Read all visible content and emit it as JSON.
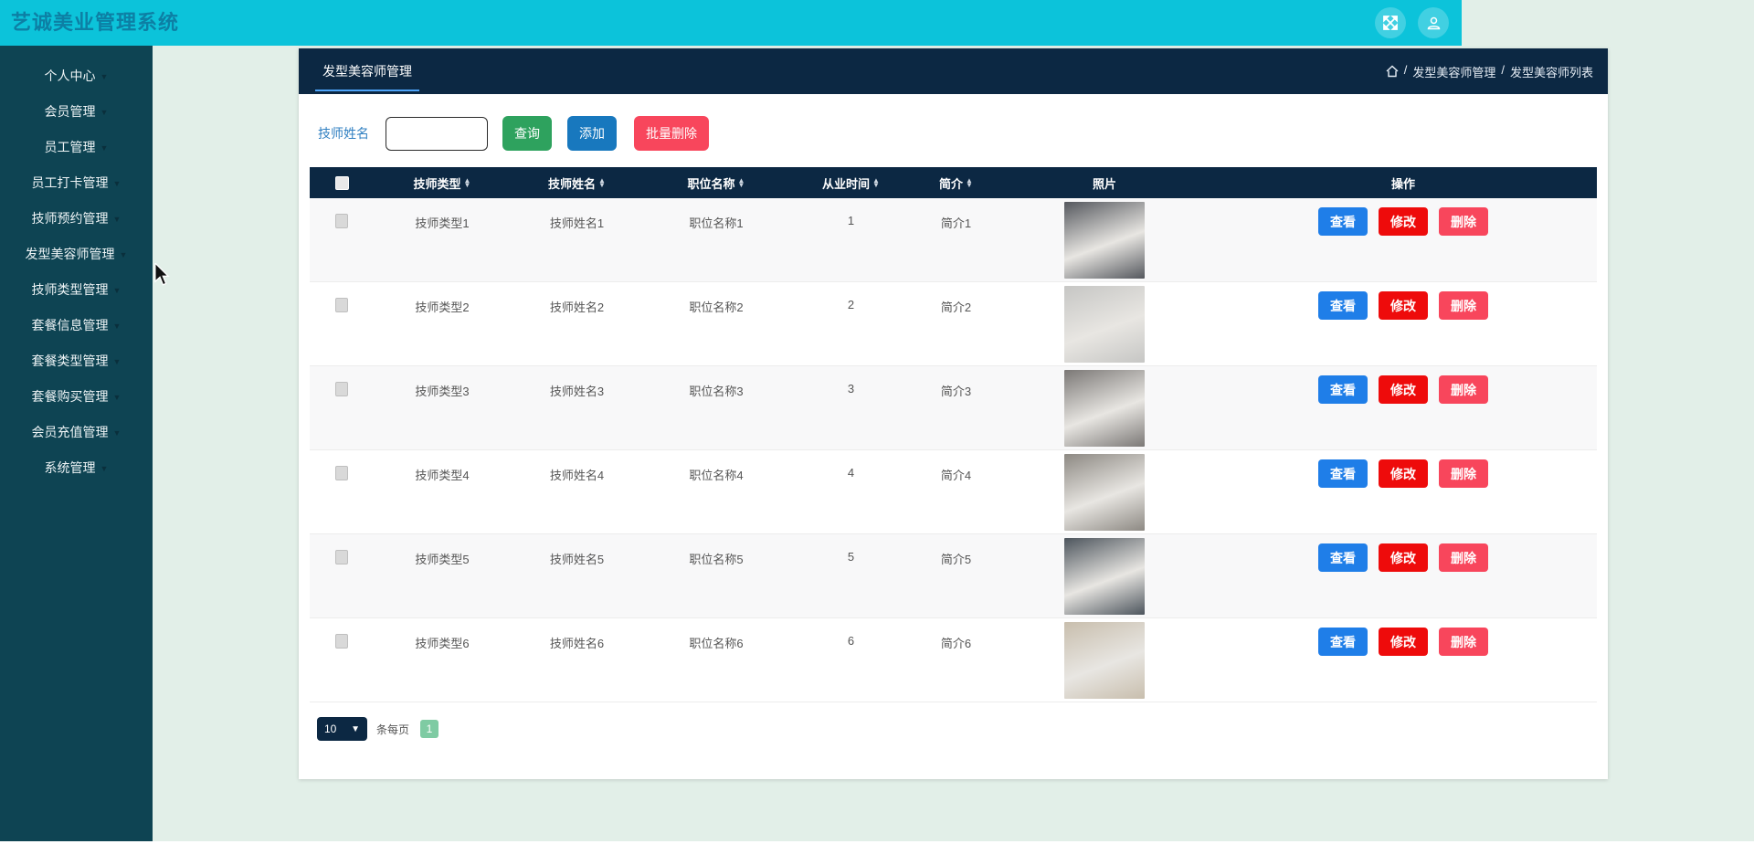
{
  "app": {
    "title": "艺诚美业管理系统"
  },
  "topbar": {
    "icons": [
      {
        "name": "fullscreen-icon"
      },
      {
        "name": "user-icon"
      }
    ]
  },
  "sidebar": {
    "items": [
      {
        "label": "个人中心",
        "active": false
      },
      {
        "label": "会员管理",
        "active": false
      },
      {
        "label": "员工管理",
        "active": false
      },
      {
        "label": "员工打卡管理",
        "active": false
      },
      {
        "label": "技师预约管理",
        "active": false
      },
      {
        "label": "发型美容师管理",
        "active": true
      },
      {
        "label": "技师类型管理",
        "active": false
      },
      {
        "label": "套餐信息管理",
        "active": false
      },
      {
        "label": "套餐类型管理",
        "active": false
      },
      {
        "label": "套餐购买管理",
        "active": false
      },
      {
        "label": "会员充值管理",
        "active": false
      },
      {
        "label": "系统管理",
        "active": false
      }
    ]
  },
  "content": {
    "tab": "发型美容师管理",
    "breadcrumb": {
      "separator": "/",
      "items": [
        "发型美容师管理",
        "发型美容师列表"
      ]
    },
    "search": {
      "label": "技师姓名",
      "value": "",
      "query": "查询",
      "add": "添加",
      "batch_delete": "批量删除"
    },
    "table": {
      "columns": [
        {
          "label": "",
          "sortable": false,
          "checkbox": true
        },
        {
          "label": "技师类型",
          "sortable": true
        },
        {
          "label": "技师姓名",
          "sortable": true
        },
        {
          "label": "职位名称",
          "sortable": true
        },
        {
          "label": "从业时间",
          "sortable": true
        },
        {
          "label": "简介",
          "sortable": true
        },
        {
          "label": "照片",
          "sortable": false
        },
        {
          "label": "操作",
          "sortable": false
        }
      ],
      "rows": [
        {
          "type": "技师类型1",
          "name": "技师姓名1",
          "position": "职位名称1",
          "years": "1",
          "intro": "简介1"
        },
        {
          "type": "技师类型2",
          "name": "技师姓名2",
          "position": "职位名称2",
          "years": "2",
          "intro": "简介2"
        },
        {
          "type": "技师类型3",
          "name": "技师姓名3",
          "position": "职位名称3",
          "years": "3",
          "intro": "简介3"
        },
        {
          "type": "技师类型4",
          "name": "技师姓名4",
          "position": "职位名称4",
          "years": "4",
          "intro": "简介4"
        },
        {
          "type": "技师类型5",
          "name": "技师姓名5",
          "position": "职位名称5",
          "years": "5",
          "intro": "简介5"
        },
        {
          "type": "技师类型6",
          "name": "技师姓名6",
          "position": "职位名称6",
          "years": "6",
          "intro": "简介6"
        }
      ],
      "actions": {
        "view": "查看",
        "edit": "修改",
        "delete": "删除"
      },
      "photo_tones": [
        "#55585e",
        "#c6c6c4",
        "#7b7876",
        "#8d8983",
        "#4d555d",
        "#c8bead"
      ]
    },
    "pagination": {
      "page_size": "10",
      "per_page_label": "条每页",
      "current_page": "1"
    }
  },
  "colors": {
    "topbar": "#0cc3da",
    "title_text": "#0d7fa4",
    "sidebar": "#0e4453",
    "panel_header": "#0c2843",
    "tab_underline": "#4da3f8",
    "query_btn": "#2ea25e",
    "add_btn": "#1878be",
    "batch_delete_btn": "#f8465c",
    "view_btn": "#1f7ee8",
    "edit_btn": "#ee0b0b",
    "delete_btn": "#f8465c",
    "page_badge": "#7fcba3",
    "background": "#e2efe8"
  }
}
